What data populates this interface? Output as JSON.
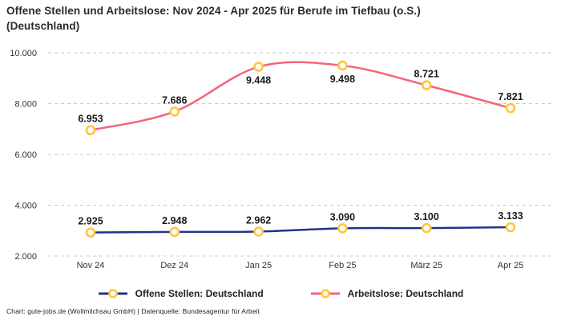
{
  "title": {
    "line1": "Offene Stellen und Arbeitslose: Nov 2024 - Apr 2025 für Berufe im Tiefbau (o.S.)",
    "line2": "(Deutschland)"
  },
  "footer": "Chart: gute-jobs.de (Wollmilchsau GmbH) | Datenquelle: Bundesagentur für Arbeit",
  "colors": {
    "open_positions_line": "#23328C",
    "unemployed_line": "#F5637A",
    "marker_stroke": "#FFC53D",
    "marker_fill": "#FFFFFF",
    "gridline": "#cbcbcb",
    "tick_text": "#333333",
    "data_label_text": "#1a1a1a"
  },
  "legend": {
    "items": [
      {
        "label": "Offene Stellen: Deutschland"
      },
      {
        "label": "Arbeitslose: Deutschland"
      }
    ]
  },
  "chart_data": {
    "type": "line",
    "title": "Offene Stellen und Arbeitslose: Nov 2024 - Apr 2025 für Berufe im Tiefbau (o.S.) (Deutschland)",
    "categories": [
      "Nov 24",
      "Dez 24",
      "Jan 25",
      "Feb 25",
      "März 25",
      "Apr 25"
    ],
    "series": [
      {
        "name": "Offene Stellen: Deutschland",
        "color": "#23328C",
        "values": [
          2925,
          2948,
          2962,
          3090,
          3100,
          3133
        ],
        "data_labels": [
          "2.925",
          "2.948",
          "2.962",
          "3.090",
          "3.100",
          "3.133"
        ],
        "label_positions": [
          "above",
          "above",
          "above",
          "above",
          "above",
          "above"
        ]
      },
      {
        "name": "Arbeitslose: Deutschland",
        "color": "#F5637A",
        "values": [
          6953,
          7686,
          9448,
          9498,
          8721,
          7821
        ],
        "data_labels": [
          "6.953",
          "7.686",
          "9.448",
          "9.498",
          "8.721",
          "7.821"
        ],
        "label_positions": [
          "above",
          "above",
          "below",
          "below",
          "above",
          "above"
        ]
      }
    ],
    "marker_style": "open-circle-yellow",
    "xlabel": "",
    "ylabel": "",
    "ylim": [
      2000,
      10000
    ],
    "yticks": [
      2000,
      4000,
      6000,
      8000,
      10000
    ],
    "ytick_labels": [
      "2.000",
      "4.000",
      "6.000",
      "8.000",
      "10.000"
    ],
    "grid": "horizontal-dashed",
    "legend_position": "bottom",
    "number_format": "de-DE"
  }
}
